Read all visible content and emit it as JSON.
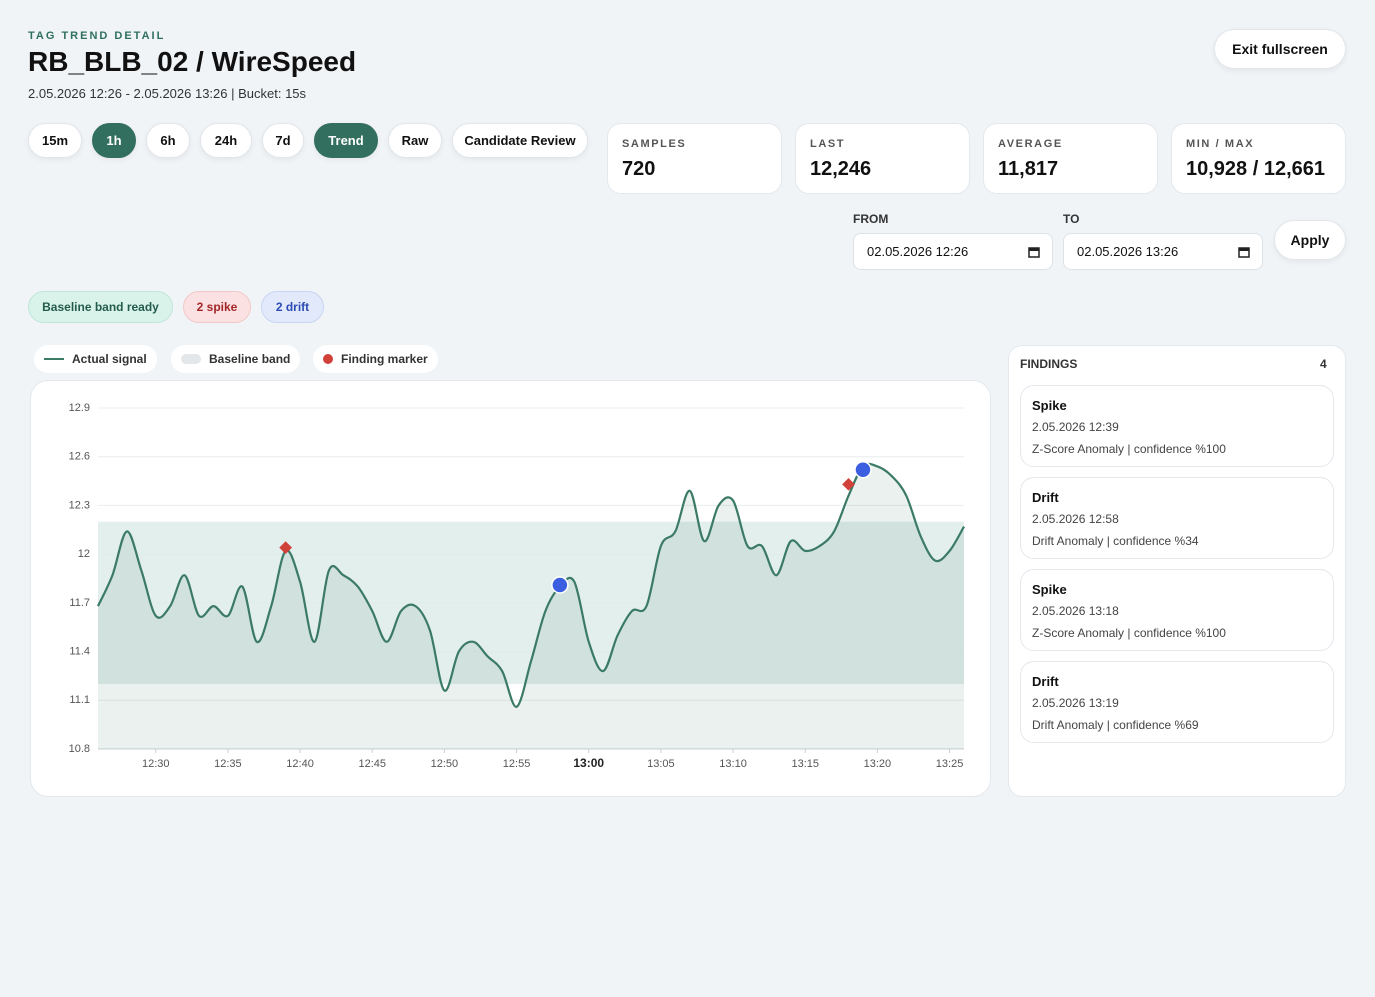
{
  "header": {
    "eyebrow": "TAG TREND DETAIL",
    "title": "RB_BLB_02 / WireSpeed",
    "subtitle": "2.05.2026 12:26 - 2.05.2026 13:26 | Bucket: 15s",
    "exit": "Exit fullscreen"
  },
  "ranges": [
    "15m",
    "1h",
    "6h",
    "24h",
    "7d"
  ],
  "active_range": "1h",
  "modes": [
    "Trend",
    "Raw",
    "Candidate Review"
  ],
  "active_mode": "Trend",
  "stats": [
    {
      "label": "SAMPLES",
      "value": "720"
    },
    {
      "label": "LAST",
      "value": "12,246"
    },
    {
      "label": "AVERAGE",
      "value": "11,817"
    },
    {
      "label": "MIN / MAX",
      "value": "10,928 / 12,661"
    }
  ],
  "date_filter": {
    "from_label": "FROM",
    "from_value": "02.05.2026 12:26",
    "to_label": "TO",
    "to_value": "02.05.2026 13:26",
    "apply": "Apply"
  },
  "badges": [
    "Baseline band ready",
    "2 spike",
    "2 drift"
  ],
  "chart_data": {
    "type": "line",
    "x": [
      "12:26",
      "12:27",
      "12:28",
      "12:29",
      "12:30",
      "12:31",
      "12:32",
      "12:33",
      "12:34",
      "12:35",
      "12:36",
      "12:37",
      "12:38",
      "12:39",
      "12:40",
      "12:41",
      "12:42",
      "12:43",
      "12:44",
      "12:45",
      "12:46",
      "12:47",
      "12:48",
      "12:49",
      "12:50",
      "12:51",
      "12:52",
      "12:53",
      "12:54",
      "12:55",
      "12:56",
      "12:57",
      "12:58",
      "12:59",
      "13:00",
      "13:01",
      "13:02",
      "13:03",
      "13:04",
      "13:05",
      "13:06",
      "13:07",
      "13:08",
      "13:09",
      "13:10",
      "13:11",
      "13:12",
      "13:13",
      "13:14",
      "13:15",
      "13:16",
      "13:17",
      "13:18",
      "13:19",
      "13:20",
      "13:21",
      "13:22",
      "13:23",
      "13:24",
      "13:25",
      "13:26"
    ],
    "series": [
      {
        "name": "Actual signal",
        "color": "#3b7a66",
        "values": [
          11.68,
          11.87,
          12.14,
          11.9,
          11.62,
          11.68,
          11.87,
          11.62,
          11.68,
          11.62,
          11.8,
          11.46,
          11.68,
          12.02,
          11.83,
          11.46,
          11.9,
          11.87,
          11.8,
          11.65,
          11.46,
          11.65,
          11.68,
          11.53,
          11.16,
          11.4,
          11.46,
          11.37,
          11.28,
          11.06,
          11.34,
          11.65,
          11.8,
          11.83,
          11.46,
          11.28,
          11.5,
          11.65,
          11.68,
          12.05,
          12.14,
          12.39,
          12.08,
          12.3,
          12.33,
          12.05,
          12.05,
          11.87,
          12.08,
          12.02,
          12.05,
          12.14,
          12.36,
          12.54,
          12.54,
          12.48,
          12.36,
          12.11,
          11.96,
          12.02,
          12.17
        ]
      }
    ],
    "band": {
      "name": "Baseline band",
      "lower": 11.2,
      "upper": 12.2,
      "color": "#dcebe9"
    },
    "markers": {
      "name": "Finding marker",
      "color": "#d0413a",
      "points": [
        {
          "x": "12:39",
          "value": 12.04,
          "shape": "diamond",
          "color": "#d0413a"
        },
        {
          "x": "12:58",
          "value": 11.81,
          "shape": "circle",
          "color": "#3b5fe0"
        },
        {
          "x": "13:18",
          "value": 12.43,
          "shape": "diamond",
          "color": "#d0413a"
        },
        {
          "x": "13:19",
          "value": 12.52,
          "shape": "circle",
          "color": "#3b5fe0"
        }
      ]
    },
    "xlim": [
      "12:26",
      "13:26"
    ],
    "xticks": [
      "12:30",
      "12:35",
      "12:40",
      "12:45",
      "12:50",
      "12:55",
      "13:00",
      "13:05",
      "13:10",
      "13:15",
      "13:20",
      "13:25"
    ],
    "highlight_xtick": "13:00",
    "ylim": [
      10.8,
      12.9
    ],
    "yticks": [
      12.9,
      12.6,
      12.3,
      12,
      11.7,
      11.4,
      11.1,
      10.8
    ],
    "grid": true
  },
  "findings": {
    "title": "FINDINGS",
    "count": 4,
    "items": [
      {
        "type": "Spike",
        "time": "2.05.2026 12:39",
        "detail": "Z-Score Anomaly | confidence %100"
      },
      {
        "type": "Drift",
        "time": "2.05.2026 12:58",
        "detail": "Drift Anomaly | confidence %34"
      },
      {
        "type": "Spike",
        "time": "2.05.2026 13:18",
        "detail": "Z-Score Anomaly | confidence %100"
      },
      {
        "type": "Drift",
        "time": "2.05.2026 13:19",
        "detail": "Drift Anomaly | confidence %69"
      }
    ]
  }
}
